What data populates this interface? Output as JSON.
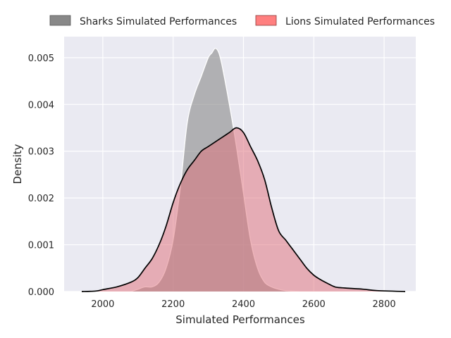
{
  "chart_data": {
    "type": "area",
    "xlabel": "Simulated Performances",
    "ylabel": "Density",
    "xlim": [
      1890,
      2890
    ],
    "ylim": [
      0,
      0.00545
    ],
    "xticks": [
      2000,
      2200,
      2400,
      2600,
      2800
    ],
    "yticks": [
      0.0,
      0.001,
      0.002,
      0.003,
      0.004,
      0.005
    ],
    "ytick_labels": [
      "0.000",
      "0.001",
      "0.002",
      "0.003",
      "0.004",
      "0.005"
    ],
    "grid": true,
    "legend_position": "top",
    "series": [
      {
        "name": "Sharks Simulated Performances",
        "color": "#888888",
        "x": [
          2080,
          2100,
          2120,
          2140,
          2160,
          2180,
          2200,
          2220,
          2240,
          2260,
          2280,
          2300,
          2310,
          2320,
          2330,
          2340,
          2360,
          2380,
          2400,
          2420,
          2440,
          2460,
          2480,
          2500,
          2520,
          2560
        ],
        "y": [
          0.0,
          5e-05,
          0.0001,
          0.0001,
          0.0002,
          0.0005,
          0.0011,
          0.0022,
          0.0036,
          0.0042,
          0.0046,
          0.005,
          0.0051,
          0.0052,
          0.0051,
          0.0048,
          0.004,
          0.0031,
          0.0021,
          0.0011,
          0.0005,
          0.0002,
          0.0001,
          5e-05,
          2e-05,
          0.0
        ]
      },
      {
        "name": "Lions Simulated Performances",
        "color": "#ff7f7f",
        "x": [
          1940,
          1980,
          2000,
          2040,
          2080,
          2100,
          2120,
          2140,
          2160,
          2180,
          2200,
          2220,
          2240,
          2260,
          2280,
          2300,
          2320,
          2340,
          2360,
          2380,
          2400,
          2420,
          2440,
          2460,
          2480,
          2500,
          2520,
          2540,
          2560,
          2580,
          2600,
          2620,
          2640,
          2660,
          2680,
          2700,
          2740,
          2780,
          2860
        ],
        "y": [
          0.0,
          1e-05,
          4e-05,
          0.0001,
          0.0002,
          0.0003,
          0.0005,
          0.0007,
          0.001,
          0.0014,
          0.0019,
          0.0023,
          0.0026,
          0.0028,
          0.003,
          0.0031,
          0.0032,
          0.0033,
          0.0034,
          0.0035,
          0.0034,
          0.0031,
          0.0028,
          0.0024,
          0.0018,
          0.0013,
          0.0011,
          0.0009,
          0.0007,
          0.0005,
          0.00035,
          0.00025,
          0.00017,
          0.0001,
          8e-05,
          7e-05,
          5e-05,
          2e-05,
          0.0
        ]
      }
    ]
  }
}
